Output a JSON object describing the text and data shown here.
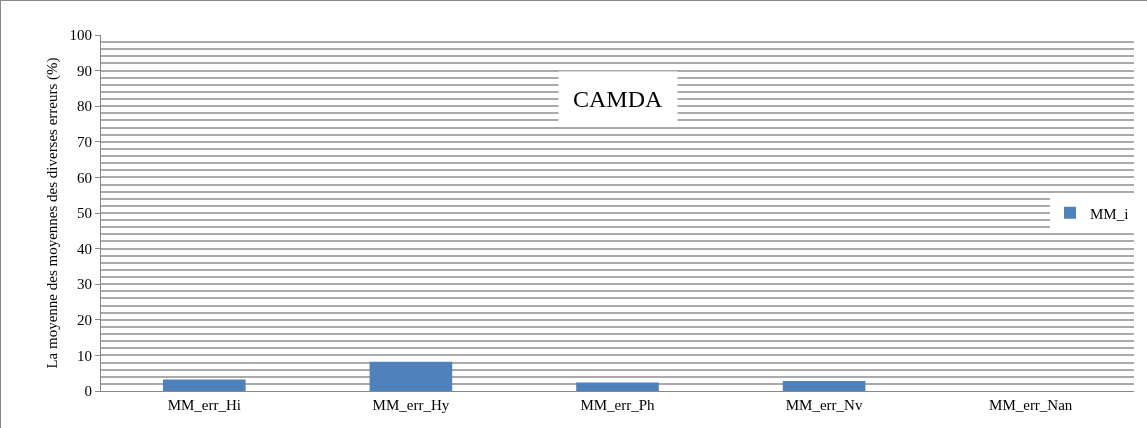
{
  "chart_data": {
    "type": "bar",
    "title": "CAMDA",
    "ylabel": "La moyenne des moyennes des diverses erreurs (%)",
    "categories": [
      "MM_err_Hi",
      "MM_err_Hy",
      "MM_err_Ph",
      "MM_err_Nv",
      "MM_err_Nan"
    ],
    "series": [
      {
        "name": "MM_i",
        "color": "#4f81bd",
        "values": [
          3.2,
          8.2,
          2.4,
          2.8,
          0
        ]
      }
    ],
    "ylim": [
      0,
      100
    ],
    "yticks": [
      0,
      10,
      20,
      30,
      40,
      50,
      60,
      70,
      80,
      90,
      100
    ],
    "grid": true,
    "legend": "right"
  }
}
